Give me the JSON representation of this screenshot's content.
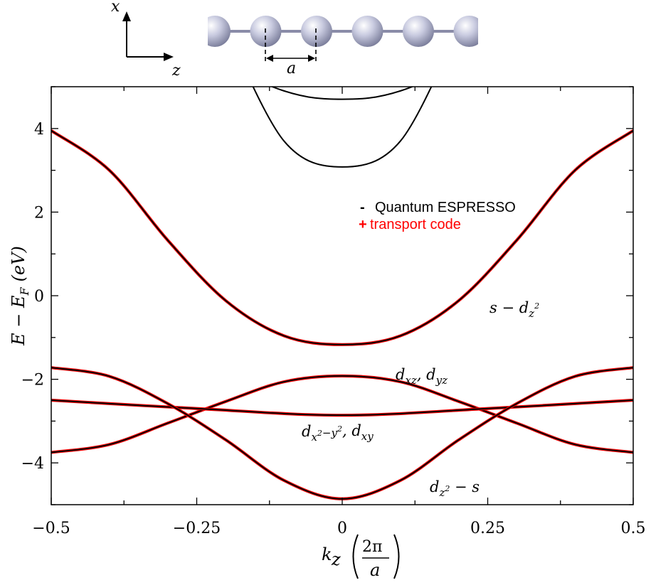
{
  "chart_data": {
    "type": "line",
    "xlabel": "k_z (2π/a)",
    "xlabel_parts": {
      "k": "k",
      "sub": "z",
      "num": "2π",
      "den": "a"
    },
    "ylabel": "E − E_F (eV)",
    "ylabel_parts": {
      "main": "E − E",
      "sub": "F",
      "unit": "(eV)"
    },
    "xlim": [
      -0.5,
      0.5
    ],
    "ylim": [
      -5,
      5
    ],
    "xticks": [
      -0.5,
      -0.25,
      0,
      0.25,
      0.5
    ],
    "xtick_labels": [
      "−0.5",
      "−0.25",
      "0",
      "0.25",
      "0.5"
    ],
    "yticks": [
      -4,
      -2,
      0,
      2,
      4
    ],
    "ytick_labels": [
      "−4",
      "−2",
      "0",
      "2",
      "4"
    ],
    "legend": {
      "placement": "upper-right",
      "entries": [
        {
          "marker": "-",
          "label": "Quantum ESPRESSO",
          "color": "#000000"
        },
        {
          "marker": "+",
          "label": "transport code",
          "color": "#ff0000"
        }
      ]
    },
    "series": [
      {
        "name": "Quantum ESPRESSO",
        "color": "#000000"
      },
      {
        "name": "transport code",
        "color": "#ff0000"
      }
    ],
    "bands": [
      {
        "label": "s − d_z²",
        "x": [
          -0.5,
          -0.4,
          -0.3,
          -0.2,
          -0.1,
          0,
          0.1,
          0.2,
          0.3,
          0.4,
          0.5
        ],
        "y": [
          3.95,
          3.0,
          1.33,
          -0.12,
          -0.96,
          -1.17,
          -0.96,
          -0.12,
          1.33,
          3.0,
          3.95
        ]
      },
      {
        "label": "d_xz, d_yz",
        "x": [
          -0.5,
          -0.4,
          -0.3,
          -0.2,
          -0.1,
          0,
          0.1,
          0.2,
          0.3,
          0.4,
          0.5
        ],
        "y": [
          -3.75,
          -3.56,
          -3.05,
          -2.53,
          -2.06,
          -1.92,
          -2.06,
          -2.53,
          -3.05,
          -3.56,
          -3.75
        ]
      },
      {
        "label": "d_x²−y², d_xy",
        "x": [
          -0.5,
          -0.25,
          0,
          0.25,
          0.5
        ],
        "y": [
          -2.5,
          -2.7,
          -2.86,
          -2.7,
          -2.5
        ]
      },
      {
        "label": "d_z² − s",
        "x": [
          -0.5,
          -0.4,
          -0.3,
          -0.2,
          -0.1,
          0,
          0.1,
          0.2,
          0.3,
          0.4,
          0.5
        ],
        "y": [
          -1.72,
          -1.93,
          -2.58,
          -3.45,
          -4.42,
          -4.86,
          -4.42,
          -3.45,
          -2.58,
          -1.93,
          -1.72
        ]
      },
      {
        "label": "",
        "qe_only": true,
        "x": [
          -0.2,
          -0.1,
          0,
          0.1,
          0.2
        ],
        "y": [
          6.4,
          3.7,
          3.08,
          3.7,
          6.4
        ]
      },
      {
        "label": "",
        "qe_only": true,
        "x": [
          -0.25,
          -0.1,
          0,
          0.1,
          0.25
        ],
        "y": [
          5.8,
          4.9,
          4.7,
          4.9,
          5.8
        ]
      }
    ],
    "band_labels": [
      "s − d_z²",
      "d_xz, d_yz",
      "d_x²−y², d_xy",
      "d_z² − s"
    ],
    "grid": false
  },
  "inset": {
    "axis_labels": [
      "x",
      "z"
    ],
    "lattice_label": "a",
    "atom_count": 6
  }
}
